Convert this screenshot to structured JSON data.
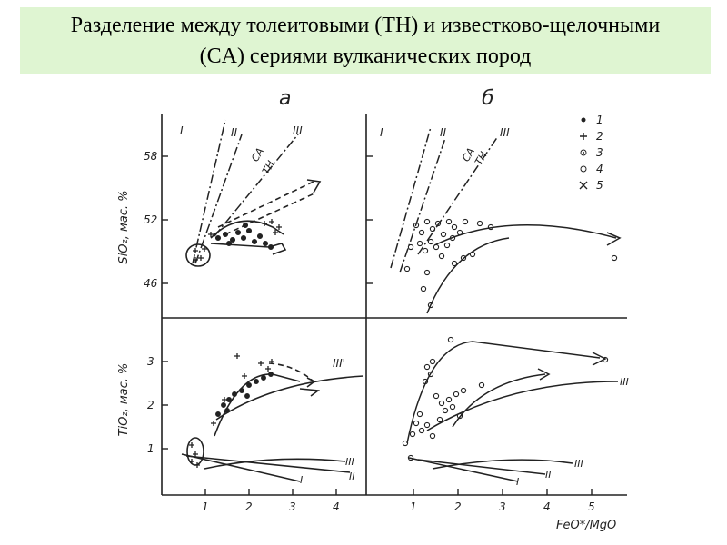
{
  "title": "Разделение между толеитовыми (TH)  и известково-щелочными\n(CA) сериями вулканических пород",
  "panels": {
    "a_label": "а",
    "b_label": "б"
  },
  "axes": {
    "sio2_label": "SiO₂, мас. %",
    "tio2_label": "TiO₂, мас. %",
    "x_label": "FeO*/MgO",
    "sio2_ticks": [
      "58",
      "52",
      "46"
    ],
    "tio2_ticks": [
      "3",
      "2",
      "1"
    ],
    "x_ticks_left": [
      "1",
      "2",
      "3",
      "4"
    ],
    "x_ticks_right": [
      "1",
      "2",
      "3",
      "4",
      "5"
    ]
  },
  "line_labels": {
    "I": "I",
    "II": "II",
    "III": "III",
    "III_prime": "III'",
    "CA": "CA",
    "TH": "TH"
  },
  "legend": [
    {
      "num": "1",
      "symbol": "•"
    },
    {
      "num": "2",
      "symbol": "+"
    },
    {
      "num": "3",
      "symbol": "⊛"
    },
    {
      "num": "4",
      "symbol": "○"
    },
    {
      "num": "5",
      "symbol": "×"
    }
  ],
  "colors": {
    "title_bg": "#dff5d2",
    "ink": "#222222"
  }
}
